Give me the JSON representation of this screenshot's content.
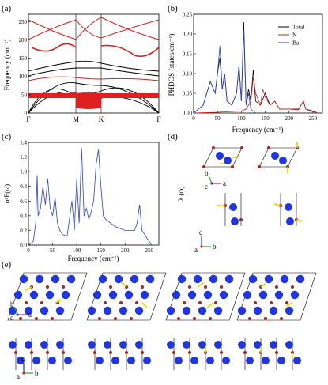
{
  "panels": {
    "a": {
      "label": "(a)",
      "ylabel": "Frequency (cm⁻¹)",
      "yticks": [
        "0",
        "50",
        "100",
        "150",
        "200",
        "250"
      ],
      "xticks": [
        "Γ",
        "M",
        "K",
        "Γ"
      ]
    },
    "b": {
      "label": "(b)",
      "ylabel": "PHDOS (states/cm⁻¹)",
      "xlabel": "Frequency (cm⁻¹)",
      "xticks": [
        "0",
        "50",
        "100",
        "150",
        "200",
        "250"
      ],
      "yticks": [
        "0.00",
        "0.05",
        "0.10",
        "0.15",
        "0.20",
        "0.25"
      ],
      "legend": [
        "Total",
        "N",
        "Ba"
      ]
    },
    "c": {
      "label": "(c)",
      "ylabel": "α²F(ω)",
      "xlabel": "Frequency (cm⁻¹)",
      "xticks": [
        "0",
        "50",
        "100",
        "150",
        "200",
        "250"
      ],
      "yticks": [
        "0.0",
        "0.2",
        "0.4",
        "0.6",
        "0.8",
        "1.0",
        "1.2",
        "1.4"
      ]
    },
    "d": {
      "label": "(d)",
      "ylabel": "λ (ω)",
      "axes_top": [
        "b",
        "c",
        "a"
      ],
      "axes_bottom": [
        "c",
        "a",
        "b"
      ]
    },
    "e": {
      "label": "(e)",
      "axes_top": [
        "b",
        "c",
        "a"
      ],
      "axes_bottom": [
        "c",
        "a",
        "b"
      ]
    }
  },
  "colors": {
    "total": "#000000",
    "N": "#d42020",
    "Ba": "#2a3fd0",
    "atom_ba": "#1f36e0",
    "atom_n": "#b22222",
    "arrow": "#d8e000",
    "axis_a": "#e02020",
    "axis_b": "#20b020",
    "axis_c": "#2030e0"
  },
  "chart_data": [
    {
      "type": "line",
      "panel": "a",
      "ylim": [
        0,
        270
      ],
      "x": [
        "Γ",
        "M",
        "K",
        "Γ"
      ],
      "series": []
    },
    {
      "type": "line",
      "panel": "b",
      "xlim": [
        0,
        270
      ],
      "ylim": [
        0,
        0.25
      ],
      "series": [
        {
          "name": "Total",
          "x": [
            0,
            20,
            35,
            45,
            50,
            55,
            60,
            65,
            70,
            80,
            90,
            95,
            100,
            105,
            110,
            115,
            120,
            125,
            130,
            140,
            150,
            160,
            170,
            180,
            190,
            200,
            220,
            230,
            235,
            250,
            260
          ],
          "y": [
            0,
            0.02,
            0.08,
            0.05,
            0.1,
            0.14,
            0.06,
            0.1,
            0.03,
            0.02,
            0.05,
            0.12,
            0.03,
            0.23,
            0.02,
            0.06,
            0.03,
            0.11,
            0.03,
            0.02,
            0.05,
            0.02,
            0.03,
            0.01,
            0.01,
            0.01,
            0.01,
            0.03,
            0.01,
            0.005,
            0
          ]
        },
        {
          "name": "N",
          "x": [
            0,
            50,
            100,
            110,
            120,
            125,
            130,
            140,
            145,
            150,
            160,
            170,
            180,
            190,
            200,
            220,
            225,
            230,
            235,
            245,
            260
          ],
          "y": [
            0,
            0.002,
            0.005,
            0.01,
            0.03,
            0.09,
            0.05,
            0.02,
            0.06,
            0.04,
            0.02,
            0.03,
            0.01,
            0.01,
            0.01,
            0.008,
            0.02,
            0.03,
            0.01,
            0.005,
            0
          ]
        },
        {
          "name": "Ba",
          "x": [
            0,
            20,
            35,
            45,
            50,
            55,
            60,
            65,
            70,
            80,
            90,
            95,
            100,
            105,
            110,
            115,
            120,
            130
          ],
          "y": [
            0,
            0.02,
            0.08,
            0.05,
            0.1,
            0.17,
            0.06,
            0.1,
            0.03,
            0.02,
            0.05,
            0.12,
            0.03,
            0.21,
            0.02,
            0.05,
            0.01,
            0
          ]
        }
      ]
    },
    {
      "type": "line",
      "panel": "c",
      "xlim": [
        0,
        270
      ],
      "ylim": [
        0,
        1.4
      ],
      "series": [
        {
          "name": "",
          "x": [
            0,
            10,
            15,
            18,
            20,
            25,
            30,
            35,
            40,
            45,
            50,
            55,
            60,
            65,
            70,
            80,
            90,
            95,
            100,
            105,
            110,
            115,
            120,
            125,
            130,
            135,
            140,
            145,
            150,
            155,
            160,
            170,
            180,
            200,
            220,
            225,
            230,
            235,
            245,
            255
          ],
          "y": [
            0,
            0.05,
            0.3,
            0.95,
            0.4,
            0.5,
            0.8,
            0.55,
            0.9,
            0.5,
            0.4,
            0.65,
            0.3,
            0.2,
            0.15,
            0.12,
            0.6,
            0.2,
            0.9,
            0.3,
            1.32,
            0.4,
            0.5,
            0.35,
            0.45,
            0.6,
            1.1,
            1.3,
            0.8,
            0.4,
            0.35,
            0.3,
            0.25,
            0.2,
            0.2,
            0.3,
            0.55,
            0.2,
            0.1,
            0
          ]
        }
      ]
    }
  ]
}
